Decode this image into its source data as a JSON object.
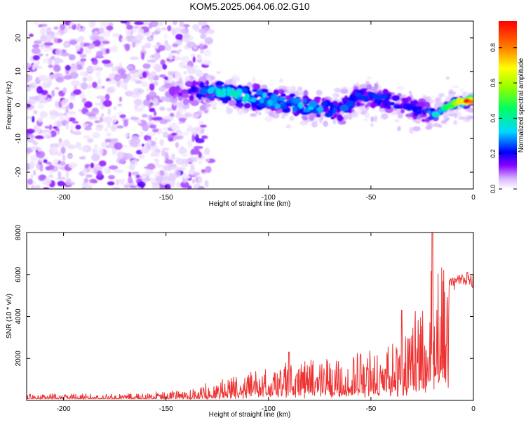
{
  "title": "KOM5.2025.064.06.02.G10",
  "chart_data": [
    {
      "type": "heatmap",
      "title": "KOM5.2025.064.06.02.G10",
      "xlabel": "Height of straight line (km)",
      "ylabel": "Frequency (Hz)",
      "xlim": [
        -218,
        0
      ],
      "ylim": [
        -25,
        25
      ],
      "xticks": [
        -200,
        -150,
        -100,
        -50,
        0
      ],
      "yticks": [
        -20,
        -10,
        0,
        10,
        20
      ],
      "grid": false,
      "colorbar": {
        "label": "Normalized spectral amplitude",
        "range": [
          0,
          0.95
        ],
        "ticks": [
          0.0,
          0.2,
          0.4,
          0.6,
          0.8
        ],
        "colormap": "rainbow"
      },
      "ridge": {
        "x": [
          -218,
          -200,
          -180,
          -160,
          -145,
          -135,
          -125,
          -115,
          -105,
          -95,
          -85,
          -75,
          -65,
          -55,
          -45,
          -35,
          -25,
          -18,
          -12,
          -6,
          -2,
          0
        ],
        "freq": [
          5,
          5,
          4,
          4,
          4,
          4,
          4,
          3,
          2,
          1,
          0,
          -1,
          -2,
          3,
          2,
          0,
          -2,
          -3,
          0,
          1,
          1,
          2
        ],
        "amplitude": [
          0.05,
          0.06,
          0.07,
          0.08,
          0.1,
          0.2,
          0.3,
          0.32,
          0.3,
          0.3,
          0.28,
          0.25,
          0.22,
          0.2,
          0.2,
          0.18,
          0.18,
          0.3,
          0.45,
          0.6,
          0.9,
          0.8
        ]
      }
    },
    {
      "type": "line",
      "xlabel": "Height of straight line (km)",
      "ylabel": "SNR (10 * v/v)",
      "xlim": [
        -218,
        0
      ],
      "ylim": [
        0,
        8000
      ],
      "xticks": [
        -200,
        -150,
        -100,
        -50,
        0
      ],
      "yticks": [
        2000,
        4000,
        6000,
        8000
      ],
      "grid": false,
      "color": "#ee3333",
      "envelope": {
        "x": [
          -218,
          -200,
          -180,
          -160,
          -150,
          -140,
          -130,
          -120,
          -110,
          -100,
          -90,
          -80,
          -70,
          -60,
          -50,
          -40,
          -35,
          -30,
          -25,
          -20,
          -15,
          -10,
          -5,
          0
        ],
        "y": [
          250,
          250,
          260,
          280,
          320,
          420,
          620,
          850,
          1050,
          1250,
          1400,
          1500,
          1550,
          1650,
          1800,
          2200,
          2600,
          3000,
          3600,
          5000,
          5400,
          5600,
          5800,
          5700
        ]
      },
      "peaks": [
        {
          "x": -90,
          "y": 2300
        },
        {
          "x": -55,
          "y": 2200
        },
        {
          "x": -35,
          "y": 4300
        },
        {
          "x": -20,
          "y": 8000
        },
        {
          "x": -10,
          "y": 5800
        },
        {
          "x": -3,
          "y": 6100
        }
      ]
    }
  ]
}
